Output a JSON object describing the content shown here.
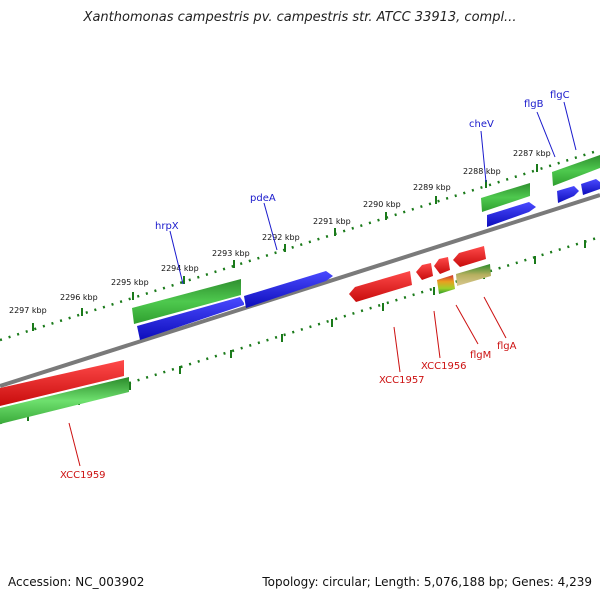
{
  "title": "Xanthomonas campestris pv. campestris str. ATCC 33913, compl...",
  "footer": {
    "accession": "Accession: NC_003902",
    "info": "Topology: circular; Length: 5,076,188 bp; Genes: 4,239"
  },
  "coordinates": [
    "2297 kbp",
    "2296 kbp",
    "2295 kbp",
    "2294 kbp",
    "2293 kbp",
    "2292 kbp",
    "2291 kbp",
    "2290 kbp",
    "2289 kbp",
    "2288 kbp",
    "2287 kbp"
  ],
  "gene_labels": [
    "hrpX",
    "pdeA",
    "cheV",
    "flgB",
    "flgC",
    "XCC1957",
    "XCC1956",
    "flgM",
    "flgA",
    "XCC1959"
  ],
  "colors": {
    "forward_strand": "#1818dd",
    "reverse_strand": "#ee1a1a",
    "operon_green": "#2a9a2a",
    "axis_grey": "#7a7a7a"
  }
}
